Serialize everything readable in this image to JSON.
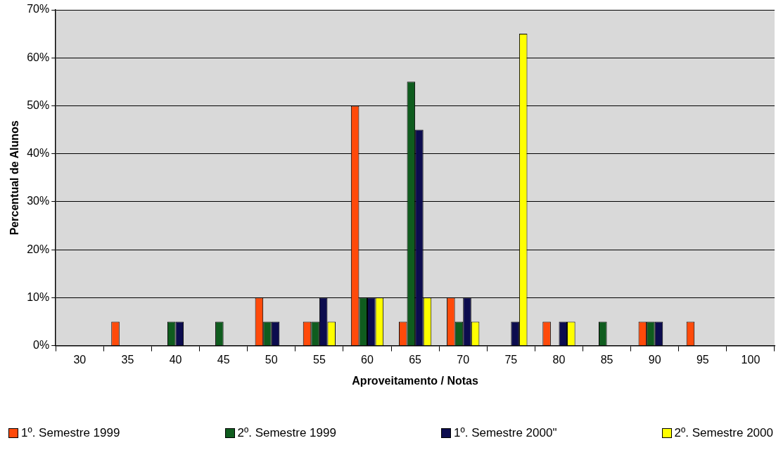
{
  "chart_data": {
    "type": "bar",
    "xlabel": "Aproveitamento / Notas",
    "ylabel": "Percentual de Alunos",
    "categories": [
      "30",
      "35",
      "40",
      "45",
      "50",
      "55",
      "60",
      "65",
      "70",
      "75",
      "80",
      "85",
      "90",
      "95",
      "100"
    ],
    "series": [
      {
        "name": "1º. Semestre 1999",
        "color": "#ff4a0a",
        "values": [
          0,
          5,
          0,
          0,
          10,
          5,
          50,
          5,
          10,
          0,
          5,
          0,
          5,
          5,
          0
        ]
      },
      {
        "name": "2º. Semestre 1999",
        "color": "#0f5c1e",
        "values": [
          0,
          0,
          5,
          5,
          5,
          5,
          10,
          55,
          5,
          0,
          0,
          5,
          5,
          0,
          0
        ]
      },
      {
        "name": "1º. Semestre 2000\"",
        "color": "#0c0c4e",
        "values": [
          0,
          0,
          5,
          0,
          5,
          10,
          10,
          45,
          10,
          5,
          5,
          0,
          5,
          0,
          0
        ]
      },
      {
        "name": "2º. Semestre 2000",
        "color": "#ffff00",
        "values": [
          0,
          0,
          0,
          0,
          0,
          5,
          10,
          10,
          5,
          65,
          5,
          0,
          0,
          0,
          0
        ]
      }
    ],
    "ylim": [
      0,
      70
    ],
    "yticks": [
      {
        "value": 0,
        "label": "0%"
      },
      {
        "value": 10,
        "label": "10%"
      },
      {
        "value": 20,
        "label": "20%"
      },
      {
        "value": 30,
        "label": "30%"
      },
      {
        "value": 40,
        "label": "40%"
      },
      {
        "value": 50,
        "label": "50%"
      },
      {
        "value": 60,
        "label": "60%"
      },
      {
        "value": 70,
        "label": "70%"
      }
    ],
    "grid": "y",
    "legend": "bottom"
  }
}
